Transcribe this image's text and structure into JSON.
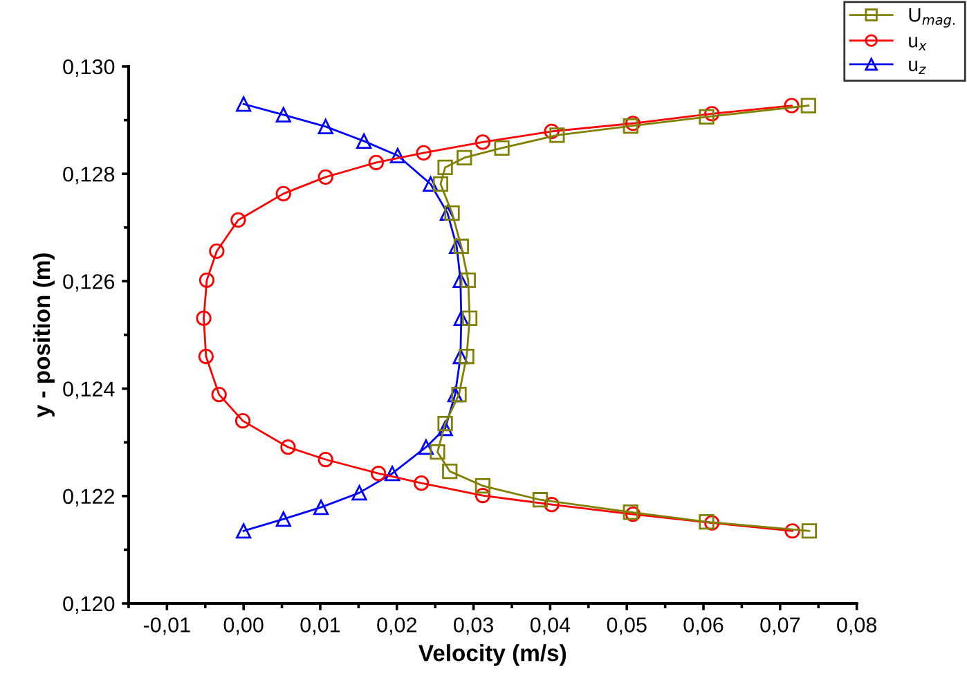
{
  "chart_data": {
    "type": "line",
    "xlabel": "Velocity (m/s)",
    "ylabel": "y - position (m)",
    "xlim": [
      -0.015,
      0.08
    ],
    "ylim": [
      0.12,
      0.13
    ],
    "xticks": [
      {
        "value": -0.015,
        "label": null
      },
      {
        "value": -0.01,
        "label": "-0,01"
      },
      {
        "value": -0.005,
        "label": null
      },
      {
        "value": 0.0,
        "label": "0,00"
      },
      {
        "value": 0.005,
        "label": null
      },
      {
        "value": 0.01,
        "label": "0,01"
      },
      {
        "value": 0.015,
        "label": null
      },
      {
        "value": 0.02,
        "label": "0,02"
      },
      {
        "value": 0.025,
        "label": null
      },
      {
        "value": 0.03,
        "label": "0,03"
      },
      {
        "value": 0.035,
        "label": null
      },
      {
        "value": 0.04,
        "label": "0,04"
      },
      {
        "value": 0.045,
        "label": null
      },
      {
        "value": 0.05,
        "label": "0,05"
      },
      {
        "value": 0.055,
        "label": null
      },
      {
        "value": 0.06,
        "label": "0,06"
      },
      {
        "value": 0.065,
        "label": null
      },
      {
        "value": 0.07,
        "label": "0,07"
      },
      {
        "value": 0.075,
        "label": null
      },
      {
        "value": 0.08,
        "label": "0,08"
      }
    ],
    "yticks": [
      {
        "value": 0.12,
        "label": "0,120"
      },
      {
        "value": 0.121,
        "label": null
      },
      {
        "value": 0.122,
        "label": "0,122"
      },
      {
        "value": 0.123,
        "label": null
      },
      {
        "value": 0.124,
        "label": "0,124"
      },
      {
        "value": 0.125,
        "label": null
      },
      {
        "value": 0.126,
        "label": "0,126"
      },
      {
        "value": 0.127,
        "label": null
      },
      {
        "value": 0.128,
        "label": "0,128"
      },
      {
        "value": 0.129,
        "label": null
      },
      {
        "value": 0.13,
        "label": "0,130"
      }
    ],
    "grid": false,
    "legend": "top right",
    "series": [
      {
        "name": "U$_{mag.}$",
        "color": "#808000",
        "marker": "square",
        "x": [
          0.0737,
          0.0604,
          0.0505,
          0.0409,
          0.0337,
          0.0288,
          0.0263,
          0.0257,
          0.0272,
          0.0284,
          0.0293,
          0.0295,
          0.0291,
          0.0281,
          0.0263,
          0.0253,
          0.0269,
          0.0312,
          0.0387,
          0.0505,
          0.0604,
          0.0738
        ],
        "values": [
          0.12927,
          0.12906,
          0.12889,
          0.12872,
          0.12848,
          0.1283,
          0.12812,
          0.12781,
          0.12727,
          0.12665,
          0.12602,
          0.12531,
          0.1246,
          0.12389,
          0.12335,
          0.12282,
          0.12246,
          0.12219,
          0.12193,
          0.1217,
          0.12152,
          0.12135
        ]
      },
      {
        "name": "u$_{x}$",
        "color": "#ff0000",
        "marker": "circle",
        "x": [
          0.0715,
          0.0611,
          0.0508,
          0.0402,
          0.0312,
          0.0235,
          0.0173,
          0.0107,
          0.0052,
          -0.0007,
          -0.0035,
          -0.0048,
          -0.0052,
          -0.0049,
          -0.0032,
          -0.0001,
          0.0058,
          0.0107,
          0.0176,
          0.0232,
          0.0312,
          0.0402,
          0.0508,
          0.0611,
          0.0716
        ],
        "values": [
          0.12927,
          0.12912,
          0.12894,
          0.12879,
          0.12859,
          0.12839,
          0.12821,
          0.12794,
          0.12763,
          0.12714,
          0.12656,
          0.12602,
          0.12531,
          0.1246,
          0.12389,
          0.1234,
          0.12291,
          0.12268,
          0.12242,
          0.12224,
          0.12201,
          0.12184,
          0.12166,
          0.1215,
          0.12135
        ]
      },
      {
        "name": "u$_{z}$",
        "color": "#0000ff",
        "marker": "triangle",
        "x": [
          0.0,
          0.0052,
          0.0107,
          0.0157,
          0.0201,
          0.0244,
          0.0266,
          0.0278,
          0.0283,
          0.0284,
          0.0283,
          0.0276,
          0.0263,
          0.0238,
          0.0194,
          0.0151,
          0.0101,
          0.0052,
          0.0
        ],
        "values": [
          0.1293,
          0.1291,
          0.12888,
          0.12861,
          0.12834,
          0.12781,
          0.12727,
          0.12665,
          0.12602,
          0.12531,
          0.1246,
          0.12389,
          0.12326,
          0.12291,
          0.12242,
          0.12206,
          0.12179,
          0.12157,
          0.12135
        ]
      }
    ]
  }
}
